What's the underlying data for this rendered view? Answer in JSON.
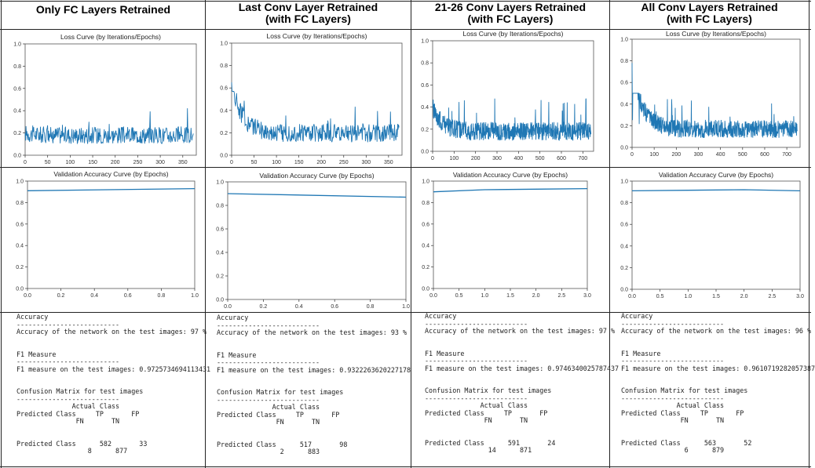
{
  "headers": [
    [
      "Only FC Layers Retrained"
    ],
    [
      "Last Conv Layer Retrained",
      "(with FC Layers)"
    ],
    [
      "21-26 Conv Layers Retrained",
      "(with FC Layers)"
    ],
    [
      "All Conv Layers Retrained",
      "(with FC Layers)"
    ]
  ],
  "colors": {
    "line": "#1f77b4",
    "grid_border": "#222222",
    "spellcheck": "#cc0000"
  },
  "chart_data": [
    {
      "type": "line",
      "title": "Loss Curve (by Iterations/Epochs)",
      "xlim": [
        0,
        380
      ],
      "ylim": [
        0,
        1.0
      ],
      "xticks": [
        0,
        50,
        100,
        150,
        200,
        250,
        300,
        350
      ],
      "yticks": [
        "0.0",
        "0.2",
        "0.4",
        "0.6",
        "0.8",
        "1.0"
      ],
      "n_points": 375,
      "start": 0.2,
      "baseline": 0.18,
      "noise": 0.13,
      "spike_max": 0.47
    },
    {
      "type": "line",
      "title": "Loss Curve (by Iterations/Epochs)",
      "xlim": [
        0,
        380
      ],
      "ylim": [
        0,
        1.0
      ],
      "xticks": [
        0,
        50,
        100,
        150,
        200,
        250,
        300,
        350
      ],
      "yticks": [
        "0.0",
        "0.2",
        "0.4",
        "0.6",
        "0.8",
        "1.0"
      ],
      "n_points": 375,
      "start": 0.65,
      "baseline": 0.2,
      "noise": 0.14,
      "spike_max": 0.52
    },
    {
      "type": "line",
      "title": "Loss Curve (by Iterations/Epochs)",
      "xlim": [
        0,
        750
      ],
      "ylim": [
        0,
        1.0
      ],
      "xticks": [
        0,
        100,
        200,
        300,
        400,
        500,
        600,
        700
      ],
      "yticks": [
        "0.0",
        "0.2",
        "0.4",
        "0.6",
        "0.8",
        "1.0"
      ],
      "n_points": 740,
      "start": 0.4,
      "baseline": 0.18,
      "noise": 0.14,
      "spike_max": 0.48
    },
    {
      "type": "line",
      "title": "Loss Curve (by Iterations/Epochs)",
      "xlim": [
        0,
        760
      ],
      "ylim": [
        0,
        1.0
      ],
      "xticks": [
        0,
        100,
        200,
        300,
        400,
        500,
        600,
        700
      ],
      "yticks": [
        "0.0",
        "0.2",
        "0.4",
        "0.6",
        "0.8",
        "1.0"
      ],
      "n_points": 740,
      "start": 0.78,
      "baseline": 0.17,
      "noise": 0.14,
      "spike_max": 0.45
    },
    {
      "type": "line",
      "title": "Validation Accuracy Curve (by Epochs)",
      "x": [
        0,
        1
      ],
      "y": [
        0.91,
        0.93
      ],
      "xlim": [
        0,
        1
      ],
      "ylim": [
        0,
        1.0
      ],
      "xticks": [
        "0.0",
        "0.2",
        "0.4",
        "0.6",
        "0.8",
        "1.0"
      ],
      "yticks": [
        "0.0",
        "0.2",
        "0.4",
        "0.6",
        "0.8",
        "1.0"
      ]
    },
    {
      "type": "line",
      "title": "Validation Accuracy Curve (by Epochs)",
      "x": [
        0,
        1
      ],
      "y": [
        0.9,
        0.87
      ],
      "xlim": [
        0,
        1
      ],
      "ylim": [
        0,
        1.0
      ],
      "xticks": [
        "0.0",
        "0.2",
        "0.4",
        "0.6",
        "0.8",
        "1.0"
      ],
      "yticks": [
        "0.0",
        "0.2",
        "0.4",
        "0.6",
        "0.8",
        "1.0"
      ]
    },
    {
      "type": "line",
      "title": "Validation Accuracy Curve (by Epochs)",
      "x": [
        0,
        1,
        2,
        3
      ],
      "y": [
        0.9,
        0.92,
        0.925,
        0.93
      ],
      "xlim": [
        0,
        3
      ],
      "ylim": [
        0,
        1.0
      ],
      "xticks": [
        "0.0",
        "0.5",
        "1.0",
        "1.5",
        "2.0",
        "2.5",
        "3.0"
      ],
      "yticks": [
        "0.0",
        "0.2",
        "0.4",
        "0.6",
        "0.8",
        "1.0"
      ]
    },
    {
      "type": "line",
      "title": "Validation Accuracy Curve (by Epochs)",
      "x": [
        0,
        1,
        2,
        3
      ],
      "y": [
        0.91,
        0.915,
        0.92,
        0.91
      ],
      "xlim": [
        0,
        3
      ],
      "ylim": [
        0,
        1.0
      ],
      "xticks": [
        "0.0",
        "0.5",
        "1.0",
        "1.5",
        "2.0",
        "2.5",
        "3.0"
      ],
      "yticks": [
        "0.0",
        "0.2",
        "0.4",
        "0.6",
        "0.8",
        "1.0"
      ]
    }
  ],
  "metrics": [
    "Accuracy\n--------------------------\nAccuracy of the network on the test images: 97 %\n\n\nF1 Measure\n--------------------------\nF1 measure on the test images: 0.9725734694113431\n\n\nConfusion Matrix for test images\n--------------------------\n              Actual Class\nPredicted Class     TP       FP\n               FN       TN\n\n\nPredicted Class      582       33\n                  8      877",
    "Accuracy\n--------------------------\nAccuracy of the network on the test images: 93 %\n\n\nF1 Measure\n--------------------------\nF1 measure on the test images: 0.9322263620227178\n\n\nConfusion Matrix for test images\n--------------------------\n              Actual Class\nPredicted Class     TP       FP\n               FN       TN\n\n\nPredicted Class      517       98\n                2      883",
    "Accuracy\n--------------------------\nAccuracy of the network on the test images: 97 %\n\n\nF1 Measure\n--------------------------\nF1 measure on the test images: 0.9746340025787437\n\n\nConfusion Matrix for test images\n--------------------------\n              Actual Class\nPredicted Class     TP       FP\n               FN       TN\n\n\nPredicted Class      591       24\n                14      871",
    "Accuracy\n--------------------------\nAccuracy of the network on the test images: 96 %\n\n\nF1 Measure\n--------------------------\nF1 measure on the test images: 0.9610719282057387\n\n\nConfusion Matrix for test images\n--------------------------\n              Actual Class\nPredicted Class     TP       FP\n               FN       TN\n\n\nPredicted Class      563       52\n                6      879"
  ]
}
